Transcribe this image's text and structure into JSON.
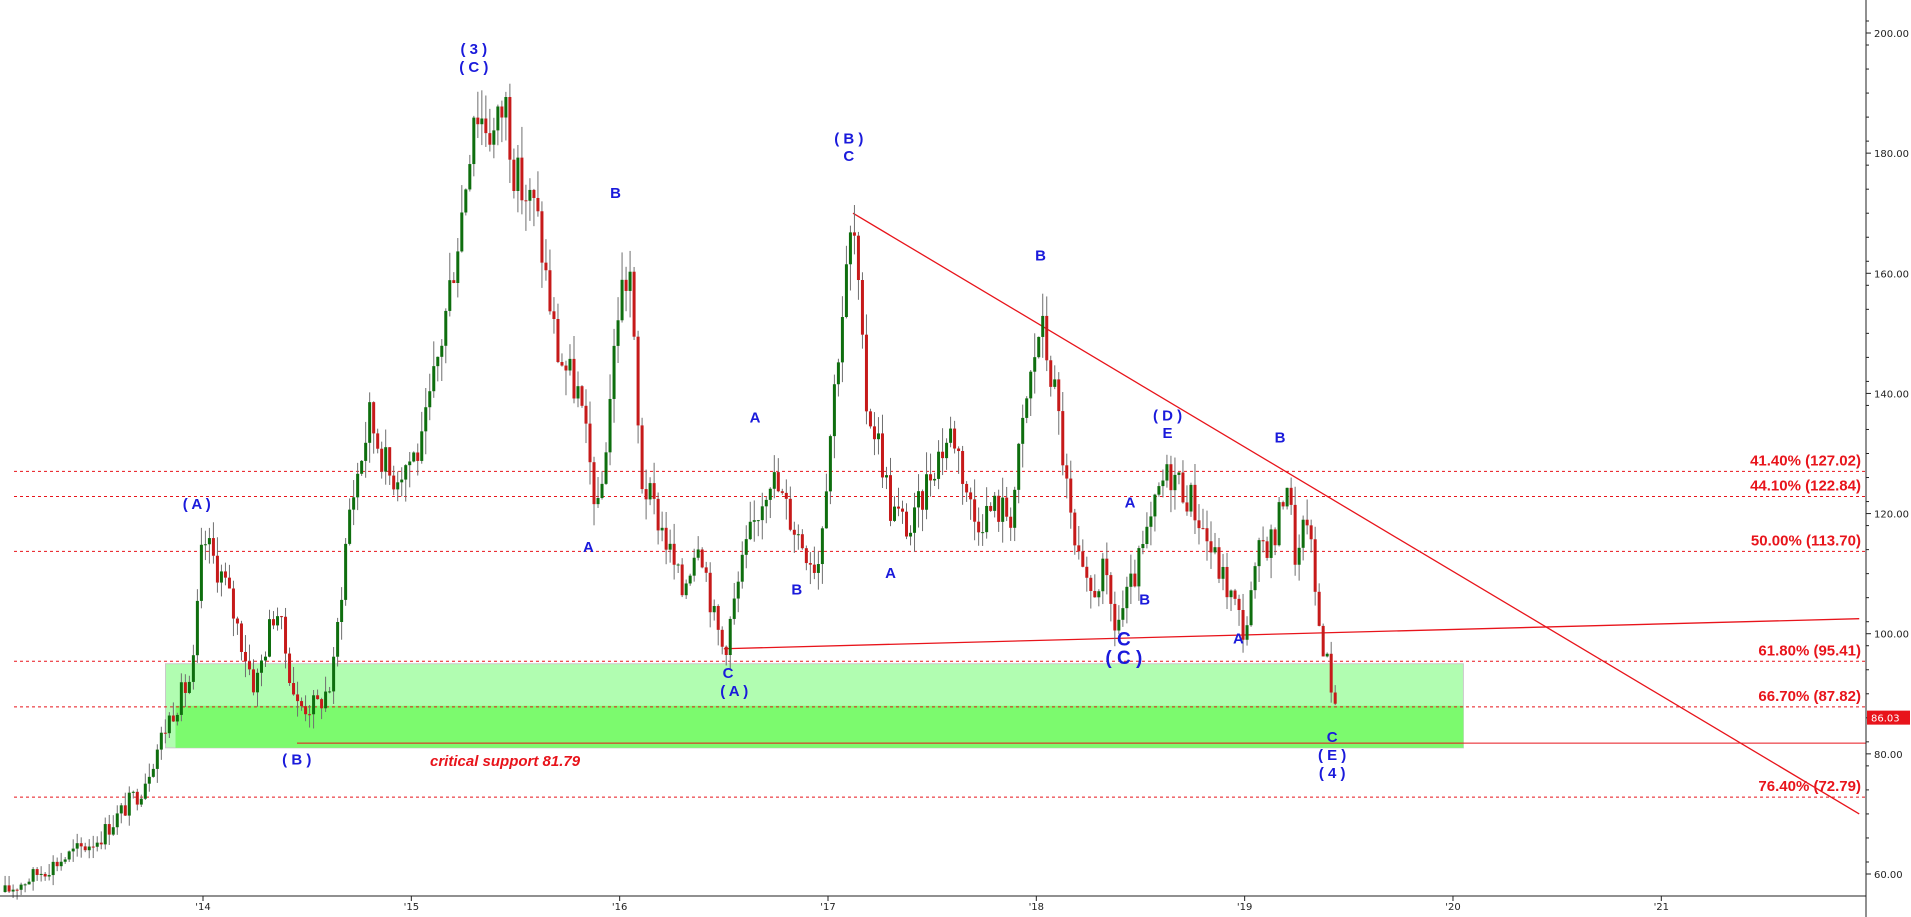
{
  "chart_data": {
    "type": "candlestick",
    "title": "",
    "xlabel": "",
    "ylabel": "",
    "ylim": [
      58,
      204
    ],
    "y_axis": {
      "position": "right",
      "ticks": [
        {
          "value": 200,
          "label": "200.00"
        },
        {
          "value": 180,
          "label": "180.00"
        },
        {
          "value": 160,
          "label": "160.00"
        },
        {
          "value": 140,
          "label": "140.00"
        },
        {
          "value": 120,
          "label": "120.00"
        },
        {
          "value": 100,
          "label": "100.00"
        },
        {
          "value": 80,
          "label": "80.00"
        },
        {
          "value": 60,
          "label": "60.00"
        }
      ]
    },
    "x_axis": {
      "ticks": [
        {
          "value": 2014.0,
          "label": "'14"
        },
        {
          "value": 2015.0,
          "label": "'15"
        },
        {
          "value": 2016.0,
          "label": "'16"
        },
        {
          "value": 2017.0,
          "label": "'17"
        },
        {
          "value": 2018.0,
          "label": "'18"
        },
        {
          "value": 2019.0,
          "label": "'19"
        },
        {
          "value": 2020.0,
          "label": "'20"
        },
        {
          "value": 2021.0,
          "label": "'21"
        }
      ]
    },
    "price_path": [
      [
        2013.05,
        57
      ],
      [
        2013.3,
        62
      ],
      [
        2013.5,
        66
      ],
      [
        2013.7,
        74
      ],
      [
        2013.85,
        87
      ],
      [
        2013.95,
        93
      ],
      [
        2014.0,
        116
      ],
      [
        2014.1,
        109
      ],
      [
        2014.25,
        91
      ],
      [
        2014.35,
        105
      ],
      [
        2014.45,
        88
      ],
      [
        2014.55,
        88
      ],
      [
        2014.62,
        92
      ],
      [
        2014.7,
        120
      ],
      [
        2014.8,
        136
      ],
      [
        2014.9,
        126
      ],
      [
        2015.05,
        131
      ],
      [
        2015.15,
        150
      ],
      [
        2015.25,
        172
      ],
      [
        2015.3,
        188
      ],
      [
        2015.4,
        183
      ],
      [
        2015.45,
        189
      ],
      [
        2015.5,
        176
      ],
      [
        2015.6,
        170
      ],
      [
        2015.7,
        147
      ],
      [
        2015.8,
        140
      ],
      [
        2015.9,
        119
      ],
      [
        2016.0,
        157
      ],
      [
        2016.05,
        160
      ],
      [
        2016.1,
        126
      ],
      [
        2016.2,
        118
      ],
      [
        2016.3,
        107
      ],
      [
        2016.38,
        117
      ],
      [
        2016.45,
        103
      ],
      [
        2016.5,
        97
      ],
      [
        2016.6,
        113
      ],
      [
        2016.72,
        127
      ],
      [
        2016.85,
        117
      ],
      [
        2016.95,
        111
      ],
      [
        2017.05,
        148
      ],
      [
        2017.12,
        169
      ],
      [
        2017.18,
        139
      ],
      [
        2017.25,
        131
      ],
      [
        2017.3,
        121
      ],
      [
        2017.4,
        117
      ],
      [
        2017.5,
        128
      ],
      [
        2017.6,
        134
      ],
      [
        2017.7,
        119
      ],
      [
        2017.8,
        121
      ],
      [
        2017.88,
        120
      ],
      [
        2017.95,
        138
      ],
      [
        2018.02,
        152
      ],
      [
        2018.1,
        138
      ],
      [
        2018.18,
        114
      ],
      [
        2018.25,
        106
      ],
      [
        2018.32,
        110
      ],
      [
        2018.38,
        101
      ],
      [
        2018.45,
        107
      ],
      [
        2018.55,
        118
      ],
      [
        2018.6,
        125
      ],
      [
        2018.65,
        127
      ],
      [
        2018.75,
        122
      ],
      [
        2018.85,
        113
      ],
      [
        2018.95,
        105
      ],
      [
        2019.0,
        100
      ],
      [
        2019.08,
        115
      ],
      [
        2019.15,
        116
      ],
      [
        2019.2,
        127
      ],
      [
        2019.25,
        111
      ],
      [
        2019.3,
        120
      ],
      [
        2019.35,
        103
      ],
      [
        2019.42,
        91
      ],
      [
        2019.45,
        86
      ]
    ],
    "fibonacci_levels": [
      {
        "value": 127.02,
        "label": "41.40% (127.02)"
      },
      {
        "value": 122.84,
        "label": "44.10% (122.84)"
      },
      {
        "value": 113.7,
        "label": "50.00% (113.70)"
      },
      {
        "value": 95.41,
        "label": "61.80% (95.41)"
      },
      {
        "value": 87.82,
        "label": "66.70% (87.82)"
      },
      {
        "value": 72.79,
        "label": "76.40% (72.79)"
      }
    ],
    "support_line": {
      "value": 81.79,
      "label": "critical support 81.79"
    },
    "current_price": {
      "value": 86.03,
      "label": "86.03"
    },
    "support_zone": {
      "light": [
        81,
        95
      ],
      "dark": [
        81,
        88
      ],
      "x_range": [
        2013.82,
        2020.05
      ]
    },
    "trendlines": [
      {
        "from": [
          2017.12,
          170
        ],
        "to": [
          2021.95,
          70
        ]
      },
      {
        "from": [
          2016.5,
          97.5
        ],
        "to": [
          2021.95,
          102.5
        ]
      }
    ],
    "wave_labels": [
      {
        "text": "( 3 )",
        "x": 2015.3,
        "y": 196.5
      },
      {
        "text": "( C )",
        "x": 2015.3,
        "y": 193.5
      },
      {
        "text": "( A )",
        "x": 2013.97,
        "y": 120.8
      },
      {
        "text": "( B )",
        "x": 2014.45,
        "y": 78.2
      },
      {
        "text": "B",
        "x": 2015.98,
        "y": 172.5
      },
      {
        "text": "A",
        "x": 2015.85,
        "y": 113.6
      },
      {
        "text": "A",
        "x": 2016.65,
        "y": 135.2
      },
      {
        "text": "B",
        "x": 2016.85,
        "y": 106.5
      },
      {
        "text": "C",
        "x": 2016.52,
        "y": 92.6
      },
      {
        "text": "( A )",
        "x": 2016.55,
        "y": 89.6
      },
      {
        "text": "( B )",
        "x": 2017.1,
        "y": 181.6
      },
      {
        "text": "C",
        "x": 2017.1,
        "y": 178.7
      },
      {
        "text": "A",
        "x": 2017.3,
        "y": 109.3
      },
      {
        "text": "B",
        "x": 2018.02,
        "y": 162.1
      },
      {
        "text": "( D )",
        "x": 2018.63,
        "y": 135.5
      },
      {
        "text": "E",
        "x": 2018.63,
        "y": 132.6
      },
      {
        "text": "A",
        "x": 2018.45,
        "y": 121.0
      },
      {
        "text": "B",
        "x": 2018.52,
        "y": 104.9
      },
      {
        "text": "C",
        "x": 2018.42,
        "y": 98.0,
        "big": true
      },
      {
        "text": "( C )",
        "x": 2018.42,
        "y": 95.0,
        "big": true
      },
      {
        "text": "A",
        "x": 2018.97,
        "y": 98.4
      },
      {
        "text": "B",
        "x": 2019.17,
        "y": 131.8
      },
      {
        "text": "C",
        "x": 2019.42,
        "y": 82.0
      },
      {
        "text": "( E )",
        "x": 2019.42,
        "y": 79.0
      },
      {
        "text": "( 4 )",
        "x": 2019.42,
        "y": 76.0
      }
    ],
    "colors": {
      "bull": "#0e6e0e",
      "bear": "#c61a1a",
      "wick": "#6f6f6f",
      "fib_line": "#e8141b",
      "wave_text": "#1a1adb",
      "zone_light": "#b1fdb1",
      "zone_dark": "#7cfa6e",
      "axis": "#222222"
    }
  }
}
